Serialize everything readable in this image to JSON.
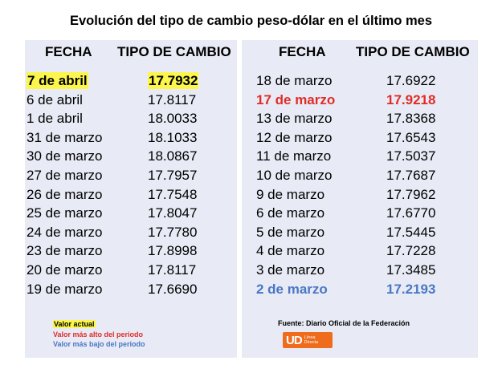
{
  "title": "Evolución del tipo de cambio peso-dólar en el último mes",
  "headers": {
    "fecha": "FECHA",
    "tipo": "TIPO DE CAMBIO"
  },
  "left_rows": [
    {
      "date": "7 de abril",
      "value": "17.7932"
    },
    {
      "date": "6 de abril",
      "value": "17.8117"
    },
    {
      "date": "1 de abril",
      "value": "18.0033"
    },
    {
      "date": "31 de marzo",
      "value": "18.1033"
    },
    {
      "date": "30 de marzo",
      "value": "18.0867"
    },
    {
      "date": "27 de marzo",
      "value": "17.7957"
    },
    {
      "date": "26 de marzo",
      "value": "17.7548"
    },
    {
      "date": "25 de marzo",
      "value": "17.8047"
    },
    {
      "date": "24 de marzo",
      "value": "17.7780"
    },
    {
      "date": "23 de marzo",
      "value": "17.8998"
    },
    {
      "date": "20 de marzo",
      "value": "17.8117"
    },
    {
      "date": "19 de marzo",
      "value": "17.6690"
    }
  ],
  "right_rows": [
    {
      "date": "18 de marzo",
      "value": "17.6922"
    },
    {
      "date": "17 de marzo",
      "value": "17.9218"
    },
    {
      "date": "13 de marzo",
      "value": "17.8368"
    },
    {
      "date": "12 de marzo",
      "value": "17.6543"
    },
    {
      "date": "11 de marzo",
      "value": "17.5037"
    },
    {
      "date": "10 de marzo",
      "value": "17.7687"
    },
    {
      "date": "9 de marzo",
      "value": "17.7962"
    },
    {
      "date": "6 de marzo",
      "value": "17.6770"
    },
    {
      "date": "5 de marzo",
      "value": "17.5445"
    },
    {
      "date": "4 de marzo",
      "value": "17.7228"
    },
    {
      "date": "3 de marzo",
      "value": "17.3485"
    },
    {
      "date": "2 de marzo",
      "value": "17.2193"
    }
  ],
  "legend": {
    "actual": "Valor actual",
    "alto": "Valor más alto del periodo",
    "bajo": "Valor más bajo del periodo"
  },
  "source": "Fuente: Diario Oficial de la Federación",
  "logo": {
    "mark": "UD",
    "line1": "Línea",
    "line2": "Directa"
  },
  "colors": {
    "panel": "#e8ebf5",
    "current": "#fbf54c",
    "high": "#e02c28",
    "low": "#4a77c4",
    "logo": "#ef6c1d"
  }
}
